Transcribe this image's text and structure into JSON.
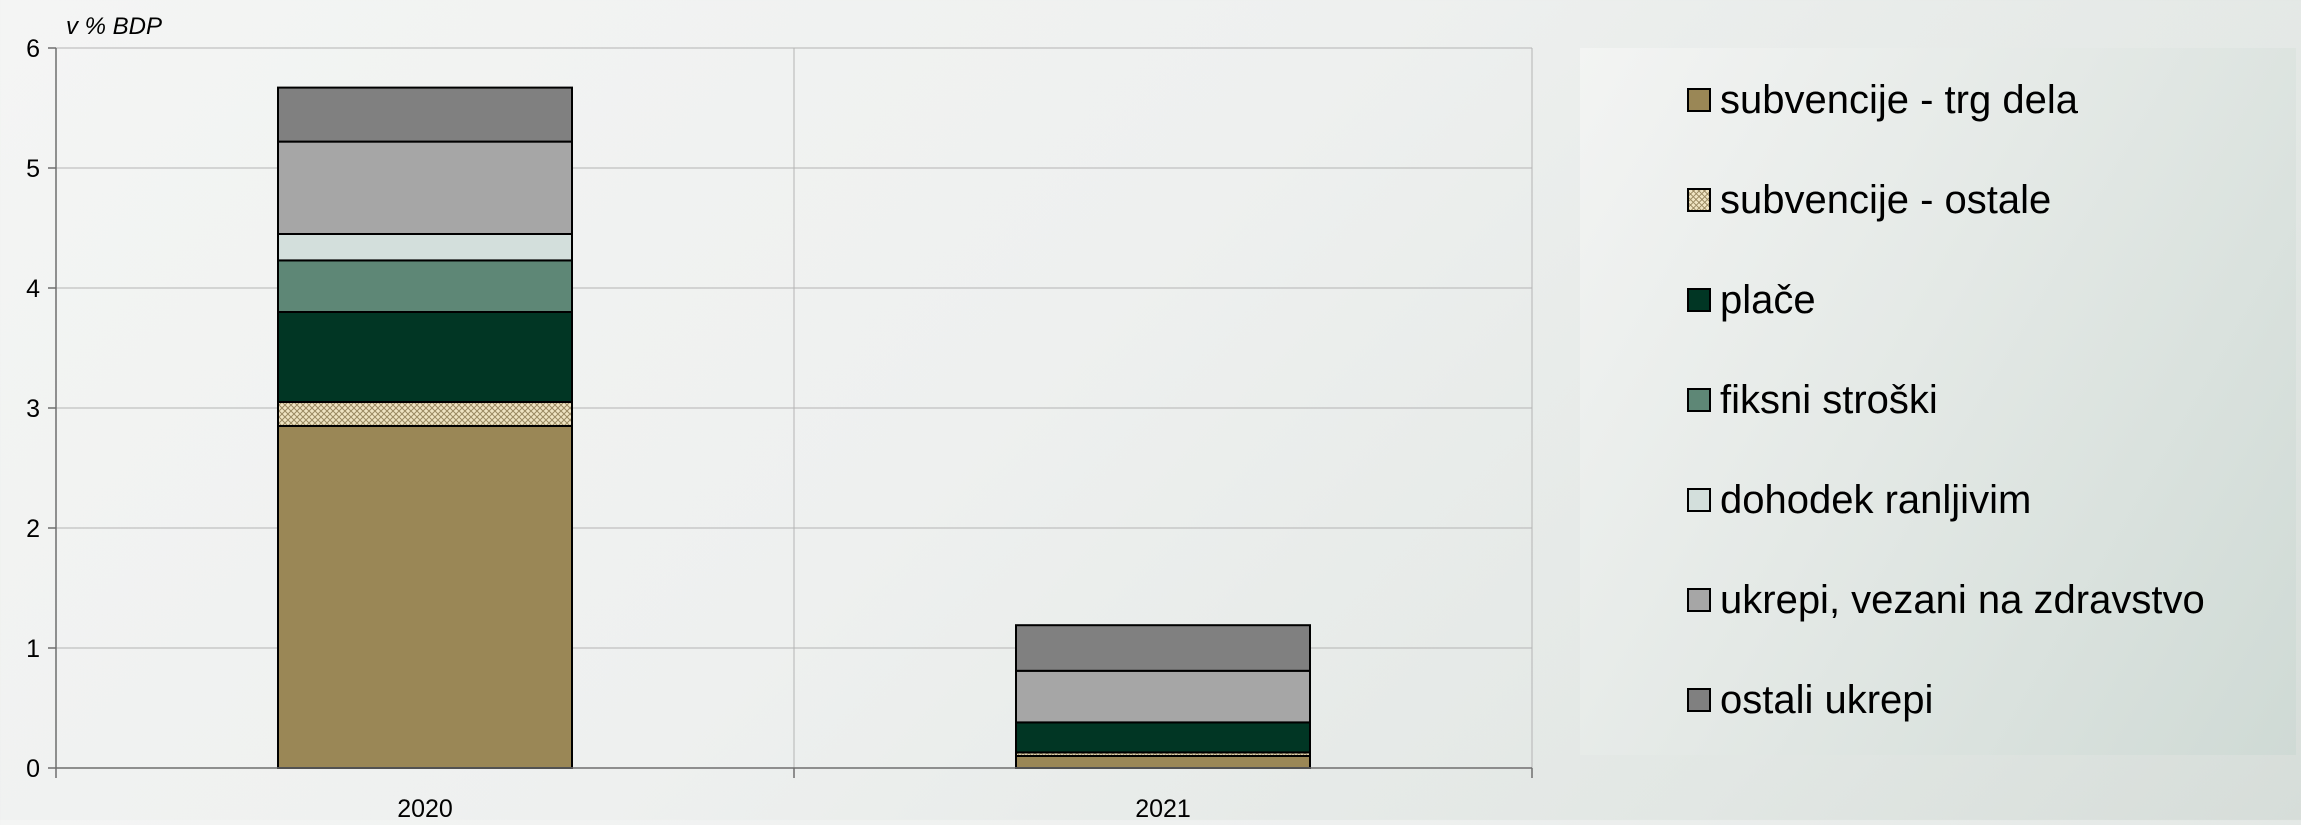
{
  "chart_data": {
    "type": "bar",
    "stacked": true,
    "ylabel": "v % BDP",
    "ylim": [
      0,
      6
    ],
    "yticks": [
      "0",
      "1",
      "2",
      "3",
      "4",
      "5",
      "6"
    ],
    "categories": [
      "2020",
      "2021"
    ],
    "grid": true,
    "legend_position": "right",
    "series": [
      {
        "name": "subvencije - trg dela",
        "color": "#9a8756",
        "pattern": "solid",
        "values": [
          2.85,
          0.1
        ]
      },
      {
        "name": "subvencije - ostale",
        "color": "#e9dcb6",
        "pattern": "crosshatch",
        "values": [
          0.2,
          0.03
        ]
      },
      {
        "name": "plače",
        "color": "#013624",
        "pattern": "solid",
        "values": [
          0.75,
          0.25
        ]
      },
      {
        "name": "fiksni stroški",
        "color": "#5e8776",
        "pattern": "solid",
        "values": [
          0.43,
          0.0
        ]
      },
      {
        "name": "dohodek ranljivim",
        "color": "#d3dfdc",
        "pattern": "solid",
        "values": [
          0.22,
          0.0
        ]
      },
      {
        "name": "ukrepi, vezani na zdravstvo",
        "color": "#a6a6a6",
        "pattern": "solid",
        "values": [
          0.77,
          0.43
        ]
      },
      {
        "name": "ostali ukrepi",
        "color": "#808080",
        "pattern": "solid",
        "values": [
          0.45,
          0.38
        ]
      }
    ]
  }
}
